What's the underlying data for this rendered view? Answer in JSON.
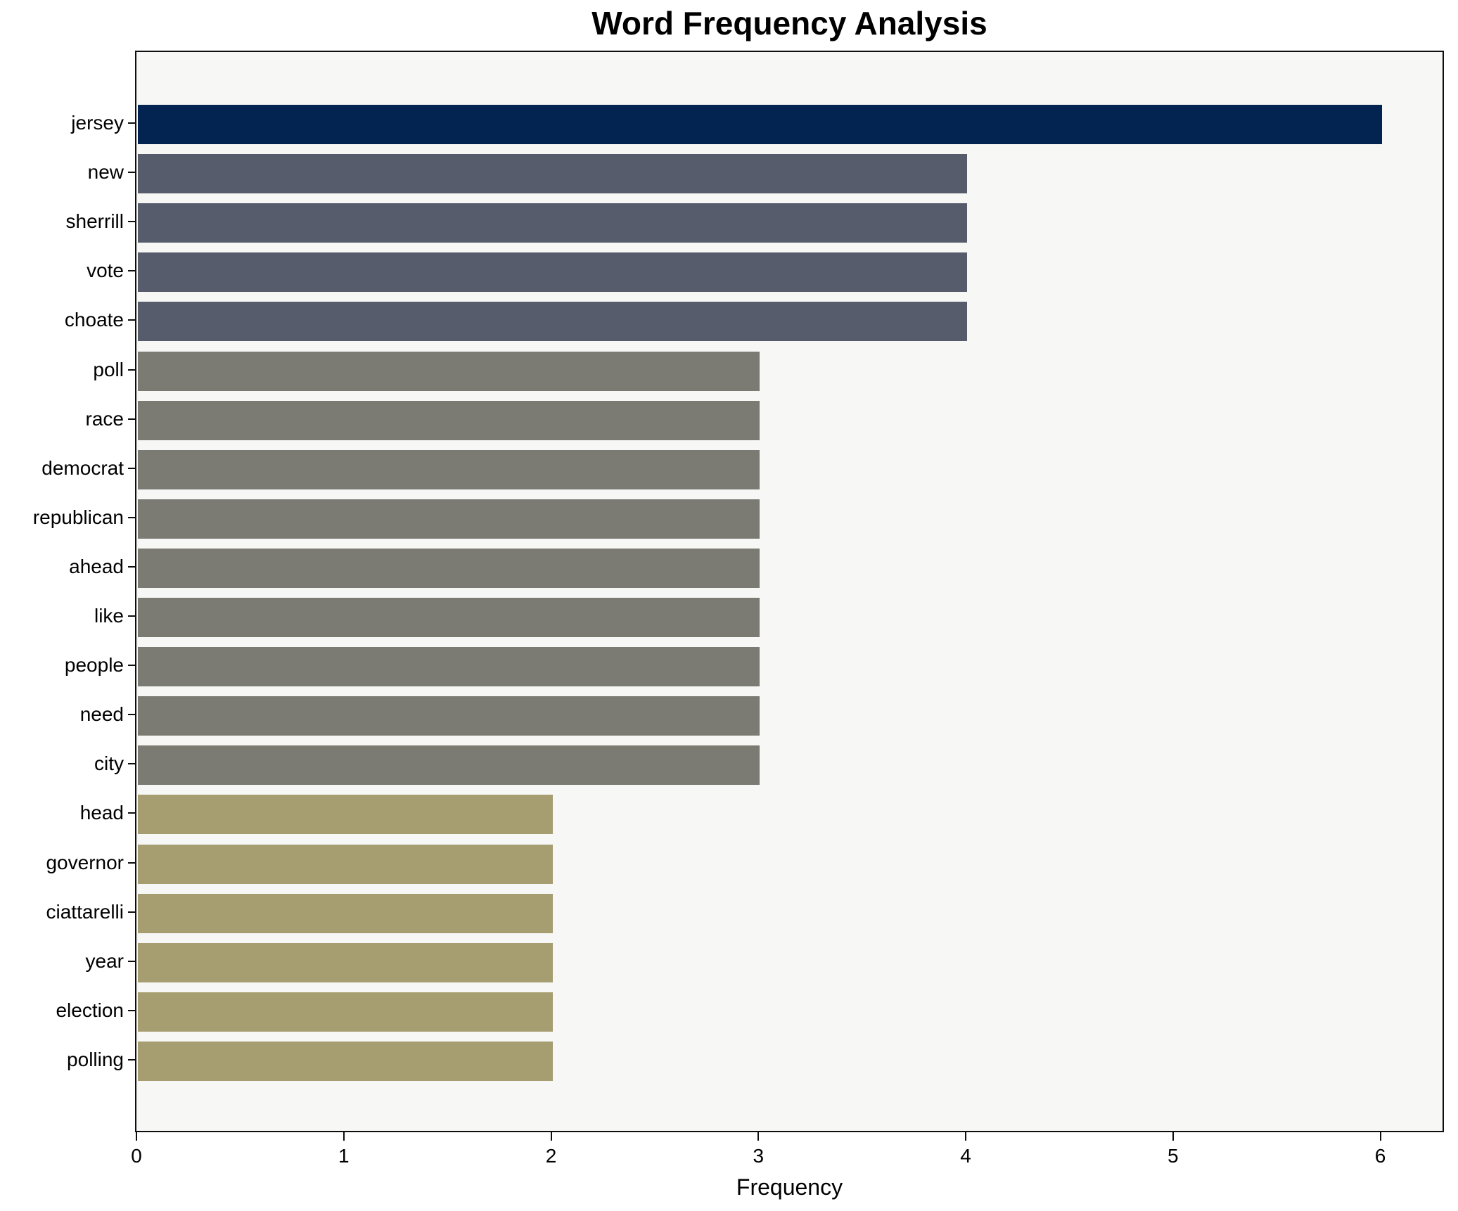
{
  "title": "Word Frequency Analysis",
  "xlabel": "Frequency",
  "chart_data": {
    "type": "bar",
    "orientation": "horizontal",
    "title": "Word Frequency Analysis",
    "xlabel": "Frequency",
    "ylabel": "",
    "grid": false,
    "legend": false,
    "xlim": [
      0,
      6.3
    ],
    "xticks": [
      0,
      1,
      2,
      3,
      4,
      5,
      6
    ],
    "categories": [
      "jersey",
      "new",
      "sherrill",
      "vote",
      "choate",
      "poll",
      "race",
      "democrat",
      "republican",
      "ahead",
      "like",
      "people",
      "need",
      "city",
      "head",
      "governor",
      "ciattarelli",
      "year",
      "election",
      "polling"
    ],
    "values": [
      6,
      4,
      4,
      4,
      4,
      3,
      3,
      3,
      3,
      3,
      3,
      3,
      3,
      3,
      2,
      2,
      2,
      2,
      2,
      2
    ],
    "bar_colors": [
      "#032350",
      "#565c6c",
      "#565c6c",
      "#565c6c",
      "#565c6c",
      "#7b7a73",
      "#7b7a73",
      "#7b7a73",
      "#7b7a73",
      "#7b7a73",
      "#7b7a73",
      "#7b7a73",
      "#7b7a73",
      "#7b7a73",
      "#a69e71",
      "#a69e71",
      "#a69e71",
      "#a69e71",
      "#a69e71",
      "#a69e71"
    ],
    "colors": {
      "navy": "#032350",
      "slate": "#565c6c",
      "gray": "#7b7a73",
      "khaki": "#a69e71",
      "plot_background": "#f7f7f5",
      "page_background": "#ffffff",
      "spine": "#0e0e0e",
      "text": "#000000"
    }
  }
}
